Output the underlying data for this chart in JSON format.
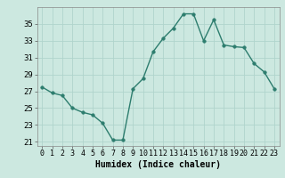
{
  "x": [
    0,
    1,
    2,
    3,
    4,
    5,
    6,
    7,
    8,
    9,
    10,
    11,
    12,
    13,
    14,
    15,
    16,
    17,
    18,
    19,
    20,
    21,
    22,
    23
  ],
  "y": [
    27.5,
    26.8,
    26.5,
    25.0,
    24.5,
    24.2,
    23.2,
    21.2,
    21.2,
    27.3,
    28.5,
    31.7,
    33.3,
    34.5,
    36.2,
    36.2,
    33.0,
    35.5,
    32.5,
    32.3,
    32.2,
    30.3,
    29.3,
    27.3
  ],
  "line_color": "#2d7d6e",
  "marker": "o",
  "marker_size": 2.5,
  "line_width": 1.0,
  "bg_color": "#cce8e0",
  "grid_color": "#b0d4cc",
  "xlabel": "Humidex (Indice chaleur)",
  "xlabel_fontsize": 7,
  "tick_fontsize": 6.5,
  "xlim": [
    -0.5,
    23.5
  ],
  "ylim": [
    20.5,
    37.0
  ],
  "yticks": [
    21,
    23,
    25,
    27,
    29,
    31,
    33,
    35
  ],
  "xticks": [
    0,
    1,
    2,
    3,
    4,
    5,
    6,
    7,
    8,
    9,
    10,
    11,
    12,
    13,
    14,
    15,
    16,
    17,
    18,
    19,
    20,
    21,
    22,
    23
  ]
}
